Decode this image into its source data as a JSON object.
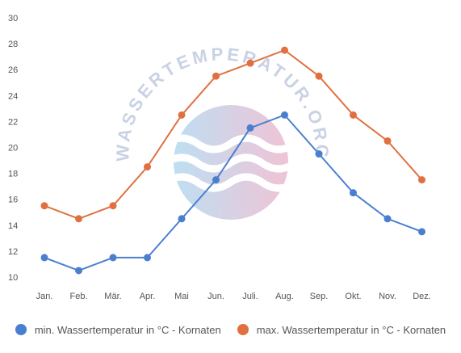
{
  "watermark": {
    "text": "WASSERTEMPERATUR.ORG"
  },
  "chart_data": {
    "type": "line",
    "categories": [
      "Jan.",
      "Feb.",
      "Mär.",
      "Apr.",
      "Mai",
      "Jun.",
      "Juli.",
      "Aug.",
      "Sep.",
      "Okt.",
      "Nov.",
      "Dez."
    ],
    "y_ticks": [
      10,
      12,
      14,
      16,
      18,
      20,
      22,
      24,
      26,
      28,
      30
    ],
    "ylim": [
      10,
      30
    ],
    "grid": false,
    "legend_position": "bottom",
    "series": [
      {
        "name": "min. Wassertemperatur in °C - Kornaten",
        "color": "#4a7fd0",
        "values": [
          11.5,
          10.5,
          11.5,
          11.5,
          14.5,
          17.5,
          21.5,
          22.5,
          19.5,
          16.5,
          14.5,
          13.5
        ]
      },
      {
        "name": "max. Wassertemperatur in °C - Kornaten",
        "color": "#e07040",
        "values": [
          15.5,
          14.5,
          15.5,
          18.5,
          22.5,
          25.5,
          26.5,
          27.5,
          25.5,
          22.5,
          20.5,
          17.5
        ]
      }
    ]
  }
}
